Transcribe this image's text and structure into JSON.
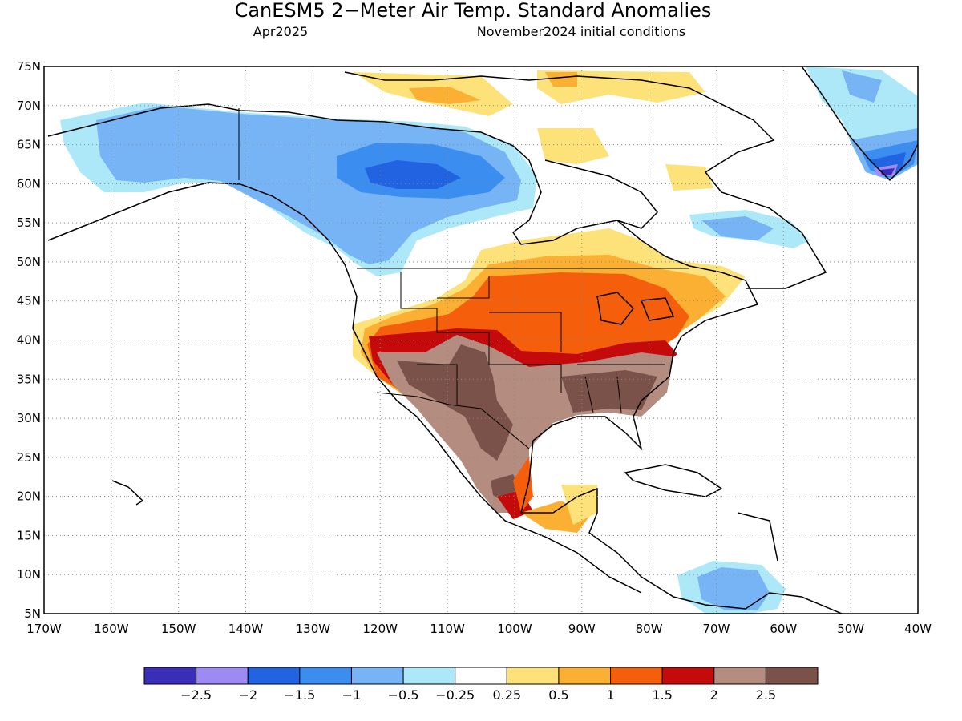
{
  "title": "CanESM5 2−Meter Air Temp. Standard Anomalies",
  "valid_month": "Apr2025",
  "initial_conditions": "November2024 initial conditions",
  "map": {
    "lat_labels": [
      "75N",
      "70N",
      "65N",
      "60N",
      "55N",
      "50N",
      "45N",
      "40N",
      "35N",
      "30N",
      "25N",
      "20N",
      "15N",
      "10N",
      "5N"
    ],
    "lon_labels": [
      "170W",
      "160W",
      "150W",
      "140W",
      "130W",
      "120W",
      "110W",
      "100W",
      "90W",
      "80W",
      "70W",
      "60W",
      "50W",
      "40W"
    ],
    "lat_range": [
      5,
      75
    ],
    "lon_range": [
      -170,
      -40
    ],
    "grid": "dotted",
    "anomaly_areas": [
      {
        "region": "Alaska and northwestern Canada",
        "bin": "-1 to -0.5"
      },
      {
        "region": "Northwest Territories core",
        "bin": "-1.5 to -1"
      },
      {
        "region": "southeastern Greenland",
        "bin": "-2.5 to -2"
      },
      {
        "region": "US Southwest and northern Mexico",
        "bin": "> 2.5"
      },
      {
        "region": "southern Plains",
        "bin": "1.5 to 2"
      },
      {
        "region": "central US and Great Lakes",
        "bin": "1 to 1.5"
      },
      {
        "region": "eastern Caribbean",
        "bin": "-1 to -0.5"
      }
    ]
  },
  "colorbar": {
    "labels": [
      "−2.5",
      "−2",
      "−1.5",
      "−1",
      "−0.5",
      "−0.25",
      "0.25",
      "0.5",
      "1",
      "1.5",
      "2",
      "2.5"
    ],
    "colors": [
      "#3a2db8",
      "#9e8af5",
      "#2163e0",
      "#3b8df0",
      "#76b4f5",
      "#ade8f8",
      "#ffffff",
      "#fde27a",
      "#fcb033",
      "#f55f0c",
      "#c40a0a",
      "#b48c80",
      "#7b5249"
    ]
  }
}
